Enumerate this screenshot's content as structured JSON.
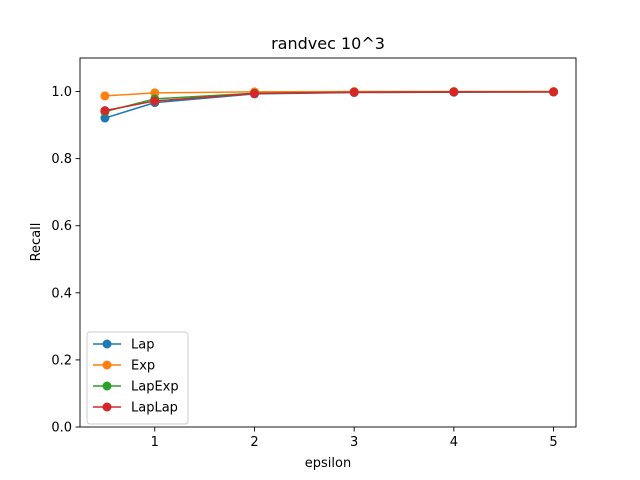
{
  "chart_data": {
    "type": "line",
    "title": "randvec 10^3",
    "xlabel": "epsilon",
    "ylabel": "Recall",
    "xlim": [
      0.25,
      5.225
    ],
    "ylim": [
      0.0,
      1.1
    ],
    "xticks": [
      1,
      2,
      3,
      4,
      5
    ],
    "yticks": [
      0.0,
      0.2,
      0.4,
      0.6,
      0.8,
      1.0
    ],
    "ytick_labels": [
      "0.0",
      "0.2",
      "0.4",
      "0.6",
      "0.8",
      "1.0"
    ],
    "x": [
      0.5,
      1,
      2,
      3,
      4,
      5
    ],
    "grid": false,
    "legend_position": "lower-left",
    "series": [
      {
        "name": "Lap",
        "color": "#1f77b4",
        "values": [
          0.921,
          0.967,
          0.993,
          0.997,
          0.998,
          0.999
        ]
      },
      {
        "name": "Exp",
        "color": "#ff7f0e",
        "values": [
          0.987,
          0.996,
          0.999,
          1.0,
          1.0,
          1.0
        ]
      },
      {
        "name": "LapExp",
        "color": "#2ca02c",
        "values": [
          0.94,
          0.978,
          0.995,
          0.998,
          0.999,
          0.999
        ]
      },
      {
        "name": "LapLap",
        "color": "#d62728",
        "values": [
          0.943,
          0.972,
          0.994,
          0.998,
          0.999,
          0.999
        ]
      }
    ]
  }
}
